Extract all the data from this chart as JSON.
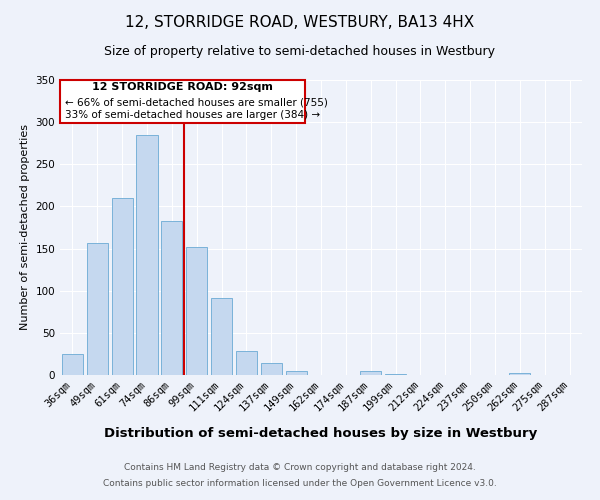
{
  "title": "12, STORRIDGE ROAD, WESTBURY, BA13 4HX",
  "subtitle": "Size of property relative to semi-detached houses in Westbury",
  "xlabel": "Distribution of semi-detached houses by size in Westbury",
  "ylabel": "Number of semi-detached properties",
  "bin_labels": [
    "36sqm",
    "49sqm",
    "61sqm",
    "74sqm",
    "86sqm",
    "99sqm",
    "111sqm",
    "124sqm",
    "137sqm",
    "149sqm",
    "162sqm",
    "174sqm",
    "187sqm",
    "199sqm",
    "212sqm",
    "224sqm",
    "237sqm",
    "250sqm",
    "262sqm",
    "275sqm",
    "287sqm"
  ],
  "bar_heights": [
    25,
    157,
    210,
    285,
    183,
    152,
    91,
    28,
    14,
    5,
    0,
    0,
    5,
    1,
    0,
    0,
    0,
    0,
    2,
    0,
    0
  ],
  "bar_color": "#c5d8ef",
  "bar_edgecolor": "#6aaad4",
  "vline_color": "#cc0000",
  "annotation_title": "12 STORRIDGE ROAD: 92sqm",
  "annotation_line1": "← 66% of semi-detached houses are smaller (755)",
  "annotation_line2": "33% of semi-detached houses are larger (384) →",
  "annotation_box_color": "#ffffff",
  "annotation_box_edgecolor": "#cc0000",
  "ylim": [
    0,
    350
  ],
  "yticks": [
    0,
    50,
    100,
    150,
    200,
    250,
    300,
    350
  ],
  "footer1": "Contains HM Land Registry data © Crown copyright and database right 2024.",
  "footer2": "Contains public sector information licensed under the Open Government Licence v3.0.",
  "background_color": "#eef2fa",
  "grid_color": "#ffffff",
  "title_fontsize": 11,
  "subtitle_fontsize": 9,
  "xlabel_fontsize": 9.5,
  "ylabel_fontsize": 8,
  "tick_fontsize": 7.5,
  "footer_fontsize": 6.5
}
